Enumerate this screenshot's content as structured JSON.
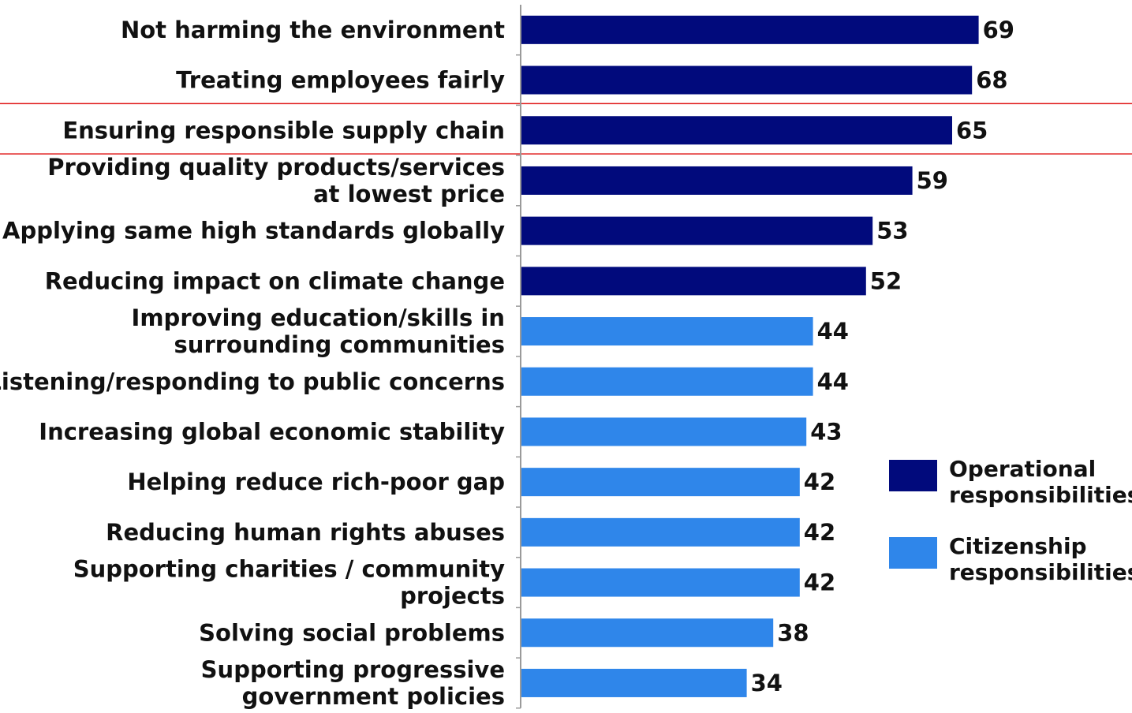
{
  "chart_data": {
    "type": "bar",
    "orientation": "horizontal",
    "categories": [
      [
        "Not harming the environment"
      ],
      [
        "Treating employees fairly"
      ],
      [
        "Ensuring responsible supply chain"
      ],
      [
        "Providing quality products/services",
        "at lowest price"
      ],
      [
        "Applying same high standards globally"
      ],
      [
        "Reducing impact on climate change"
      ],
      [
        "Improving education/skills in",
        "surrounding communities"
      ],
      [
        "Listening/responding to public concerns"
      ],
      [
        "Increasing global economic stability"
      ],
      [
        "Helping reduce rich-poor gap"
      ],
      [
        "Reducing human rights abuses"
      ],
      [
        "Supporting charities / community",
        "projects"
      ],
      [
        "Solving social problems"
      ],
      [
        "Supporting progressive",
        "government policies"
      ]
    ],
    "values": [
      69,
      68,
      65,
      59,
      53,
      52,
      44,
      44,
      43,
      42,
      42,
      42,
      38,
      34
    ],
    "value_labels": [
      "69",
      "68",
      "65",
      "59",
      "53",
      "52",
      "44",
      "44",
      "43",
      "42",
      "42",
      "42",
      "38",
      "34"
    ],
    "groups": [
      "operational",
      "operational",
      "operational",
      "operational",
      "operational",
      "operational",
      "citizenship",
      "citizenship",
      "citizenship",
      "citizenship",
      "citizenship",
      "citizenship",
      "citizenship",
      "citizenship"
    ],
    "series": [
      {
        "key": "operational",
        "name": [
          "Operational",
          "responsibilities"
        ],
        "color": "#010a7c"
      },
      {
        "key": "citizenship",
        "name": [
          "Citizenship",
          "responsibilities"
        ],
        "color": "#2f86ea"
      }
    ],
    "highlighted_category_index": 2,
    "highlight_color": "#e01818",
    "xlim": [
      0,
      78
    ],
    "legend_position": "right",
    "grid": false,
    "title": "",
    "xlabel": "",
    "ylabel": ""
  }
}
